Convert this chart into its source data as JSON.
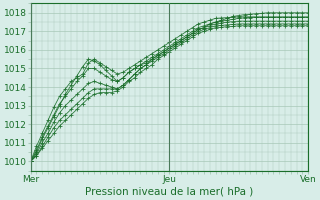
{
  "xlabel": "Pression niveau de la mer( hPa )",
  "xlim": [
    0,
    48
  ],
  "ylim": [
    1009.5,
    1018.5
  ],
  "yticks": [
    1010,
    1011,
    1012,
    1013,
    1014,
    1015,
    1016,
    1017,
    1018
  ],
  "xtick_labels": [
    "Mer",
    "Jeu",
    "Ven"
  ],
  "xtick_positions": [
    0,
    24,
    48
  ],
  "bg_color": "#d8ede8",
  "grid_color": "#a8c8b8",
  "line_color": "#1a6e2a",
  "series": [
    [
      1010.0,
      1010.5,
      1011.2,
      1011.8,
      1012.4,
      1013.0,
      1013.6,
      1014.1,
      1014.6,
      1015.1,
      1015.5,
      1015.4,
      1015.2,
      1014.9,
      1014.6,
      1014.3,
      1014.5,
      1014.8,
      1015.0,
      1015.2,
      1015.3,
      1015.5,
      1015.7,
      1015.9,
      1016.1,
      1016.3,
      1016.5,
      1016.7,
      1016.9,
      1017.1,
      1017.2,
      1017.4,
      1017.5,
      1017.6,
      1017.7,
      1017.8,
      1017.85,
      1017.9,
      1017.92,
      1017.95,
      1017.97,
      1018.0,
      1018.0,
      1018.0,
      1018.0,
      1018.0,
      1018.0,
      1018.0,
      1018.0
    ],
    [
      1010.0,
      1010.6,
      1011.3,
      1011.9,
      1012.5,
      1013.1,
      1013.5,
      1013.9,
      1014.3,
      1014.6,
      1015.0,
      1015.0,
      1014.8,
      1014.6,
      1014.4,
      1014.3,
      1014.5,
      1014.8,
      1015.0,
      1015.2,
      1015.4,
      1015.6,
      1015.8,
      1016.0,
      1016.2,
      1016.4,
      1016.6,
      1016.8,
      1017.0,
      1017.2,
      1017.3,
      1017.4,
      1017.5,
      1017.55,
      1017.6,
      1017.65,
      1017.7,
      1017.72,
      1017.74,
      1017.75,
      1017.75,
      1017.75,
      1017.75,
      1017.75,
      1017.75,
      1017.75,
      1017.75,
      1017.75,
      1017.75
    ],
    [
      1010.0,
      1010.4,
      1011.0,
      1011.5,
      1012.1,
      1012.6,
      1013.0,
      1013.3,
      1013.6,
      1013.9,
      1014.2,
      1014.3,
      1014.2,
      1014.1,
      1014.0,
      1013.9,
      1014.1,
      1014.4,
      1014.7,
      1015.0,
      1015.2,
      1015.5,
      1015.7,
      1015.9,
      1016.1,
      1016.3,
      1016.5,
      1016.7,
      1016.9,
      1017.1,
      1017.2,
      1017.3,
      1017.4,
      1017.45,
      1017.5,
      1017.52,
      1017.55,
      1017.55,
      1017.55,
      1017.55,
      1017.55,
      1017.55,
      1017.55,
      1017.55,
      1017.55,
      1017.55,
      1017.55,
      1017.55,
      1017.55
    ],
    [
      1010.0,
      1010.3,
      1010.8,
      1011.3,
      1011.8,
      1012.2,
      1012.5,
      1012.8,
      1013.1,
      1013.4,
      1013.7,
      1013.9,
      1013.9,
      1013.9,
      1013.9,
      1013.9,
      1014.1,
      1014.4,
      1014.7,
      1015.0,
      1015.2,
      1015.4,
      1015.6,
      1015.8,
      1016.0,
      1016.2,
      1016.4,
      1016.6,
      1016.8,
      1017.0,
      1017.1,
      1017.2,
      1017.3,
      1017.32,
      1017.35,
      1017.37,
      1017.4,
      1017.4,
      1017.4,
      1017.4,
      1017.4,
      1017.4,
      1017.4,
      1017.4,
      1017.4,
      1017.4,
      1017.4,
      1017.4,
      1017.4
    ],
    [
      1010.0,
      1010.3,
      1010.7,
      1011.1,
      1011.5,
      1011.9,
      1012.2,
      1012.5,
      1012.8,
      1013.1,
      1013.4,
      1013.6,
      1013.7,
      1013.7,
      1013.7,
      1013.8,
      1014.0,
      1014.3,
      1014.5,
      1014.8,
      1015.0,
      1015.2,
      1015.5,
      1015.7,
      1015.9,
      1016.1,
      1016.3,
      1016.5,
      1016.7,
      1016.9,
      1017.0,
      1017.1,
      1017.2,
      1017.22,
      1017.25,
      1017.27,
      1017.3,
      1017.3,
      1017.3,
      1017.3,
      1017.3,
      1017.3,
      1017.3,
      1017.3,
      1017.3,
      1017.3,
      1017.3,
      1017.3,
      1017.3
    ],
    [
      1010.0,
      1010.8,
      1011.5,
      1012.2,
      1012.9,
      1013.5,
      1013.9,
      1014.3,
      1014.5,
      1014.7,
      1015.3,
      1015.5,
      1015.3,
      1015.1,
      1014.9,
      1014.7,
      1014.8,
      1015.0,
      1015.2,
      1015.4,
      1015.6,
      1015.8,
      1016.0,
      1016.2,
      1016.4,
      1016.6,
      1016.8,
      1017.0,
      1017.2,
      1017.4,
      1017.5,
      1017.6,
      1017.7,
      1017.72,
      1017.74,
      1017.76,
      1017.78,
      1017.78,
      1017.78,
      1017.78,
      1017.78,
      1017.78,
      1017.78,
      1017.78,
      1017.78,
      1017.78,
      1017.78,
      1017.78,
      1017.78
    ]
  ]
}
